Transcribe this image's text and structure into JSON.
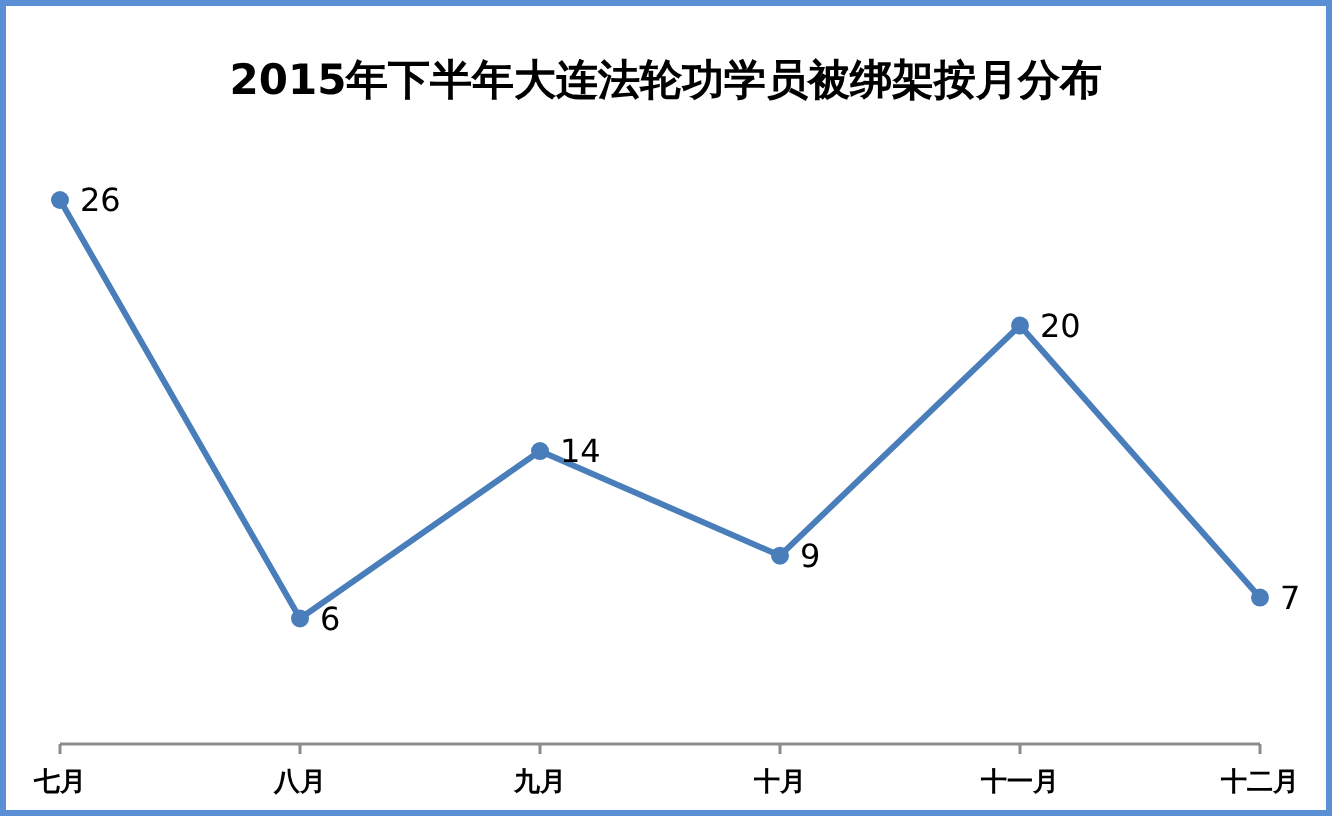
{
  "chart_data": {
    "type": "line",
    "title": "2015年下半年大连法轮功学员被绑架按月分布",
    "categories": [
      "七月",
      "八月",
      "九月",
      "十月",
      "十一月",
      "十二月"
    ],
    "series": [
      {
        "color": "#4a7ebb",
        "values": [
          26,
          6,
          14,
          9,
          20,
          7
        ]
      }
    ],
    "marker": "circle",
    "data_labels": true
  }
}
